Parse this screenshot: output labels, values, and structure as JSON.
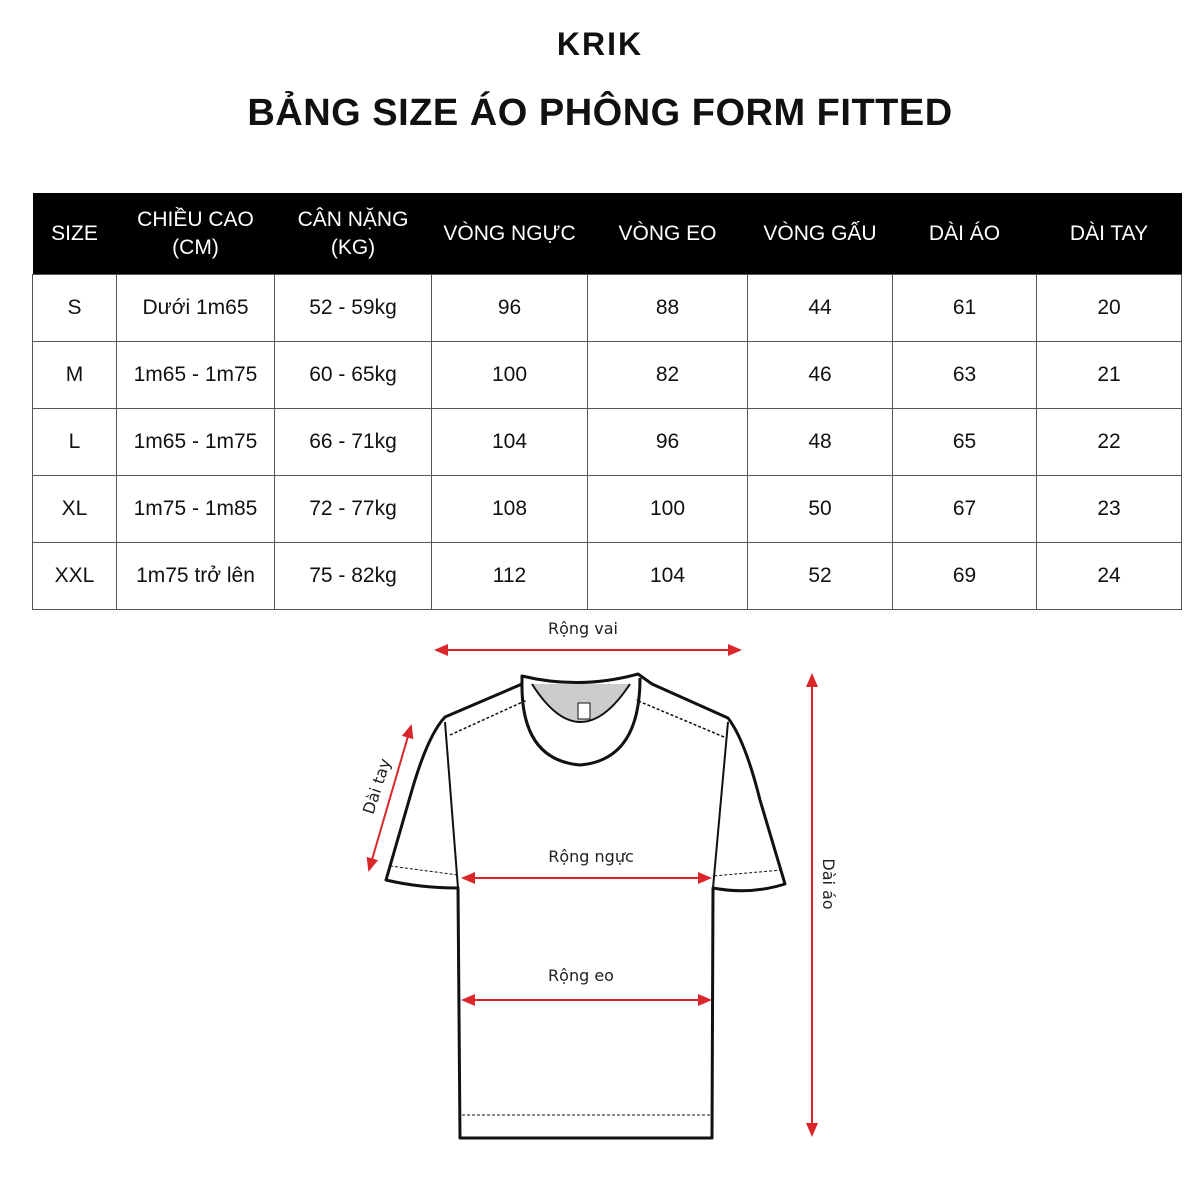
{
  "brand": "KRIK",
  "title": "BẢNG SIZE ÁO PHÔNG FORM FITTED",
  "table": {
    "headers": [
      "SIZE",
      "CHIỀU CAO\n(CM)",
      "CÂN NẶNG\n(KG)",
      "VÒNG NGỰC",
      "VÒNG EO",
      "VÒNG GẤU",
      "DÀI ÁO",
      "DÀI TAY"
    ],
    "rows": [
      [
        "S",
        "Dưới 1m65",
        "52 - 59kg",
        "96",
        "88",
        "44",
        "61",
        "20"
      ],
      [
        "M",
        "1m65 - 1m75",
        "60 - 65kg",
        "100",
        "82",
        "46",
        "63",
        "21"
      ],
      [
        "L",
        "1m65 - 1m75",
        "66 - 71kg",
        "104",
        "96",
        "48",
        "65",
        "22"
      ],
      [
        "XL",
        "1m75 - 1m85",
        "72 - 77kg",
        "108",
        "100",
        "50",
        "67",
        "23"
      ],
      [
        "XXL",
        "1m75 trở lên",
        "75 - 82kg",
        "112",
        "104",
        "52",
        "69",
        "24"
      ]
    ]
  },
  "diagram": {
    "shoulder_label": "Rộng vai",
    "sleeve_label": "Dài tay",
    "chest_label": "Rộng ngực",
    "waist_label": "Rộng eo",
    "length_label": "Dài áo",
    "arrow_color": "#d9262b"
  }
}
